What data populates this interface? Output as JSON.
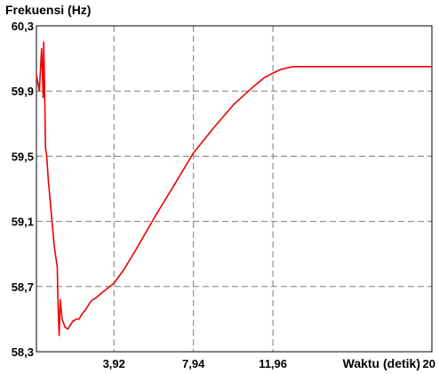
{
  "chart_data": {
    "type": "line",
    "title": "",
    "ylabel": "Frekuensi (Hz)",
    "xlabel": "Waktu (detik)",
    "xlim": [
      0,
      20
    ],
    "ylim": [
      58.3,
      60.3
    ],
    "grid": true,
    "x_ticks": [
      {
        "value": 3.92,
        "label": "3,92"
      },
      {
        "value": 7.94,
        "label": "7,94"
      },
      {
        "value": 11.96,
        "label": "11,96"
      },
      {
        "value": 20,
        "label": "20"
      }
    ],
    "y_ticks": [
      {
        "value": 60.3,
        "label": "60,3"
      },
      {
        "value": 59.9,
        "label": "59,9"
      },
      {
        "value": 59.5,
        "label": "59,5"
      },
      {
        "value": 59.1,
        "label": "59,1"
      },
      {
        "value": 58.7,
        "label": "58,7"
      },
      {
        "value": 58.3,
        "label": "58,3"
      }
    ],
    "series": [
      {
        "color": "#ee0000",
        "x": [
          0,
          0.15,
          0.26,
          0.34,
          0.37,
          0.42,
          0.46,
          0.52,
          0.6,
          0.75,
          0.9,
          1.05,
          1.1,
          1.15,
          1.2,
          1.3,
          1.45,
          1.6,
          1.75,
          1.85,
          1.9,
          2.0,
          2.15,
          2.3,
          2.5,
          2.7,
          2.85,
          3.0,
          3.2,
          3.4,
          3.6,
          3.92,
          4.4,
          5.0,
          6.0,
          7.0,
          7.94,
          9.0,
          10.0,
          11.0,
          11.5,
          11.96,
          12.3,
          12.6,
          13.0,
          14.0,
          16.0,
          18.0,
          20.0
        ],
        "y": [
          60.0,
          59.9,
          60.16,
          59.86,
          60.2,
          59.88,
          59.55,
          59.5,
          59.35,
          59.15,
          58.95,
          58.82,
          58.55,
          58.4,
          58.62,
          58.5,
          58.45,
          58.44,
          58.47,
          58.49,
          58.49,
          58.5,
          58.5,
          58.53,
          58.56,
          58.6,
          58.62,
          58.63,
          58.65,
          58.67,
          58.69,
          58.72,
          58.8,
          58.92,
          59.13,
          59.33,
          59.52,
          59.68,
          59.82,
          59.93,
          59.98,
          60.01,
          60.03,
          60.04,
          60.05,
          60.05,
          60.05,
          60.05,
          60.05
        ]
      }
    ]
  }
}
